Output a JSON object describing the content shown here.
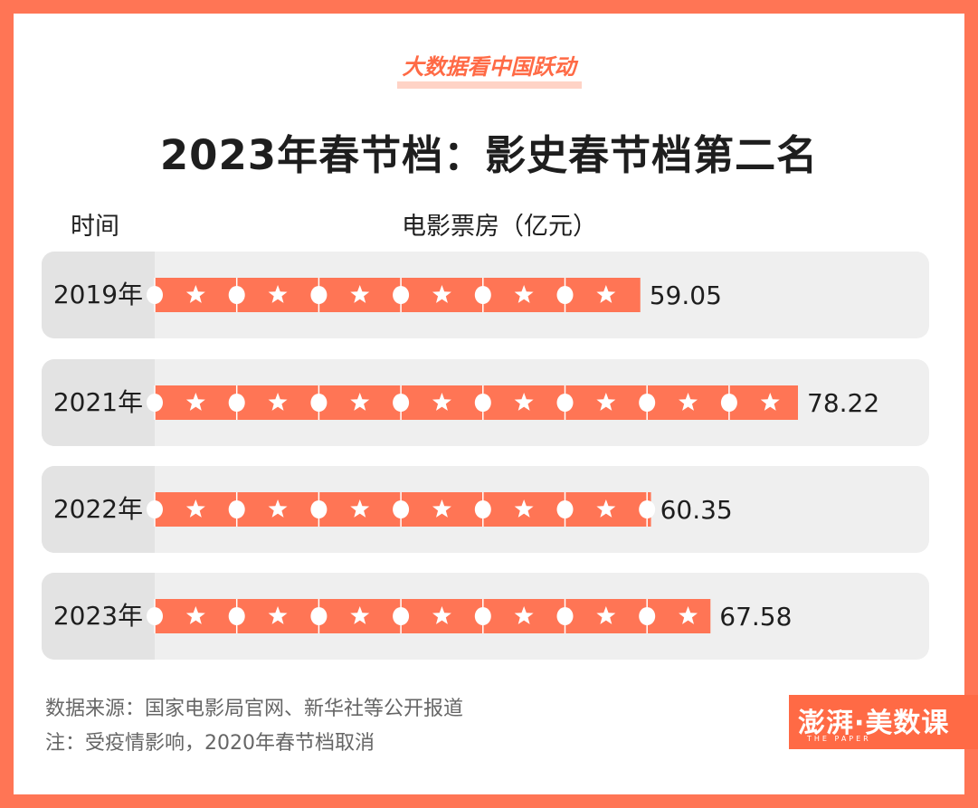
{
  "header": {
    "brand": "大数据看中国跃动",
    "title": "2023年春节档：影史春节档第二名"
  },
  "columns": {
    "time": "时间",
    "box_office": "电影票房（亿元）"
  },
  "notes": {
    "source": "数据来源：国家电影局官网、新华社等公开报道",
    "remark": "注：受疫情影响，2020年春节档取消"
  },
  "logo": {
    "text": "澎湃·美数课",
    "sub": "THE PAPER"
  },
  "colors": {
    "background": "#ff7555",
    "bar": "#ff7555",
    "row_bg": "#efefef",
    "label_bg": "#e3e3e3",
    "text": "#1e1e1e"
  },
  "chart_data": {
    "type": "bar",
    "orientation": "horizontal",
    "title": "2023年春节档：影史春节档第二名",
    "xlabel": "电影票房（亿元）",
    "ylabel": "时间",
    "categories": [
      "2019年",
      "2021年",
      "2022年",
      "2023年"
    ],
    "values": [
      59.05,
      78.22,
      60.35,
      67.58
    ],
    "value_labels": [
      "59.05",
      "78.22",
      "60.35",
      "67.58"
    ],
    "xlim": [
      0,
      78.22
    ],
    "style": "film-strip bars with star and circle punch marks"
  }
}
